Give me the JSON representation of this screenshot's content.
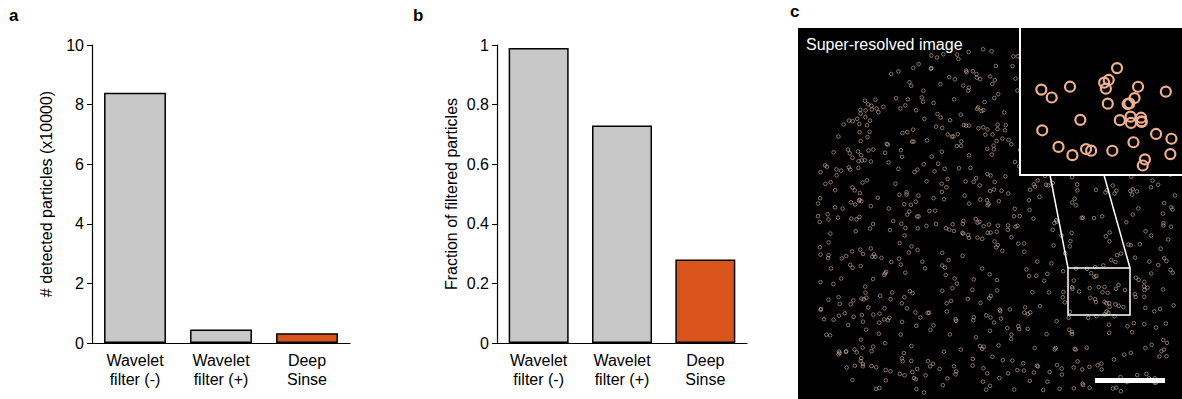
{
  "chart_data": [
    {
      "type": "bar",
      "title": "a",
      "categories": [
        "Wavelet\nfilter (-)",
        "Wavelet\nfilter (+)",
        "Deep\nSinse"
      ],
      "values": [
        8.4,
        0.45,
        0.33
      ],
      "colors": [
        "#c8c8c8",
        "#c8c8c8",
        "#d9541a"
      ],
      "ylabel": "# detected particles (x10000)",
      "ylim": [
        0,
        10
      ],
      "yticks": [
        0,
        2,
        4,
        6,
        8,
        10
      ],
      "grid": false
    },
    {
      "type": "bar",
      "title": "b",
      "categories": [
        "Wavelet\nfilter (-)",
        "Wavelet\nfilter (+)",
        "Deep\nSinse"
      ],
      "values": [
        0.99,
        0.73,
        0.28
      ],
      "colors": [
        "#c8c8c8",
        "#c8c8c8",
        "#d9541a"
      ],
      "ylabel": "Fraction of filtered particles",
      "ylim": [
        0,
        1
      ],
      "yticks": [
        0,
        0.2,
        0.4,
        0.6,
        0.8,
        1
      ],
      "grid": false
    }
  ],
  "image": {
    "panel": "c",
    "label": "Super-resolved image"
  }
}
